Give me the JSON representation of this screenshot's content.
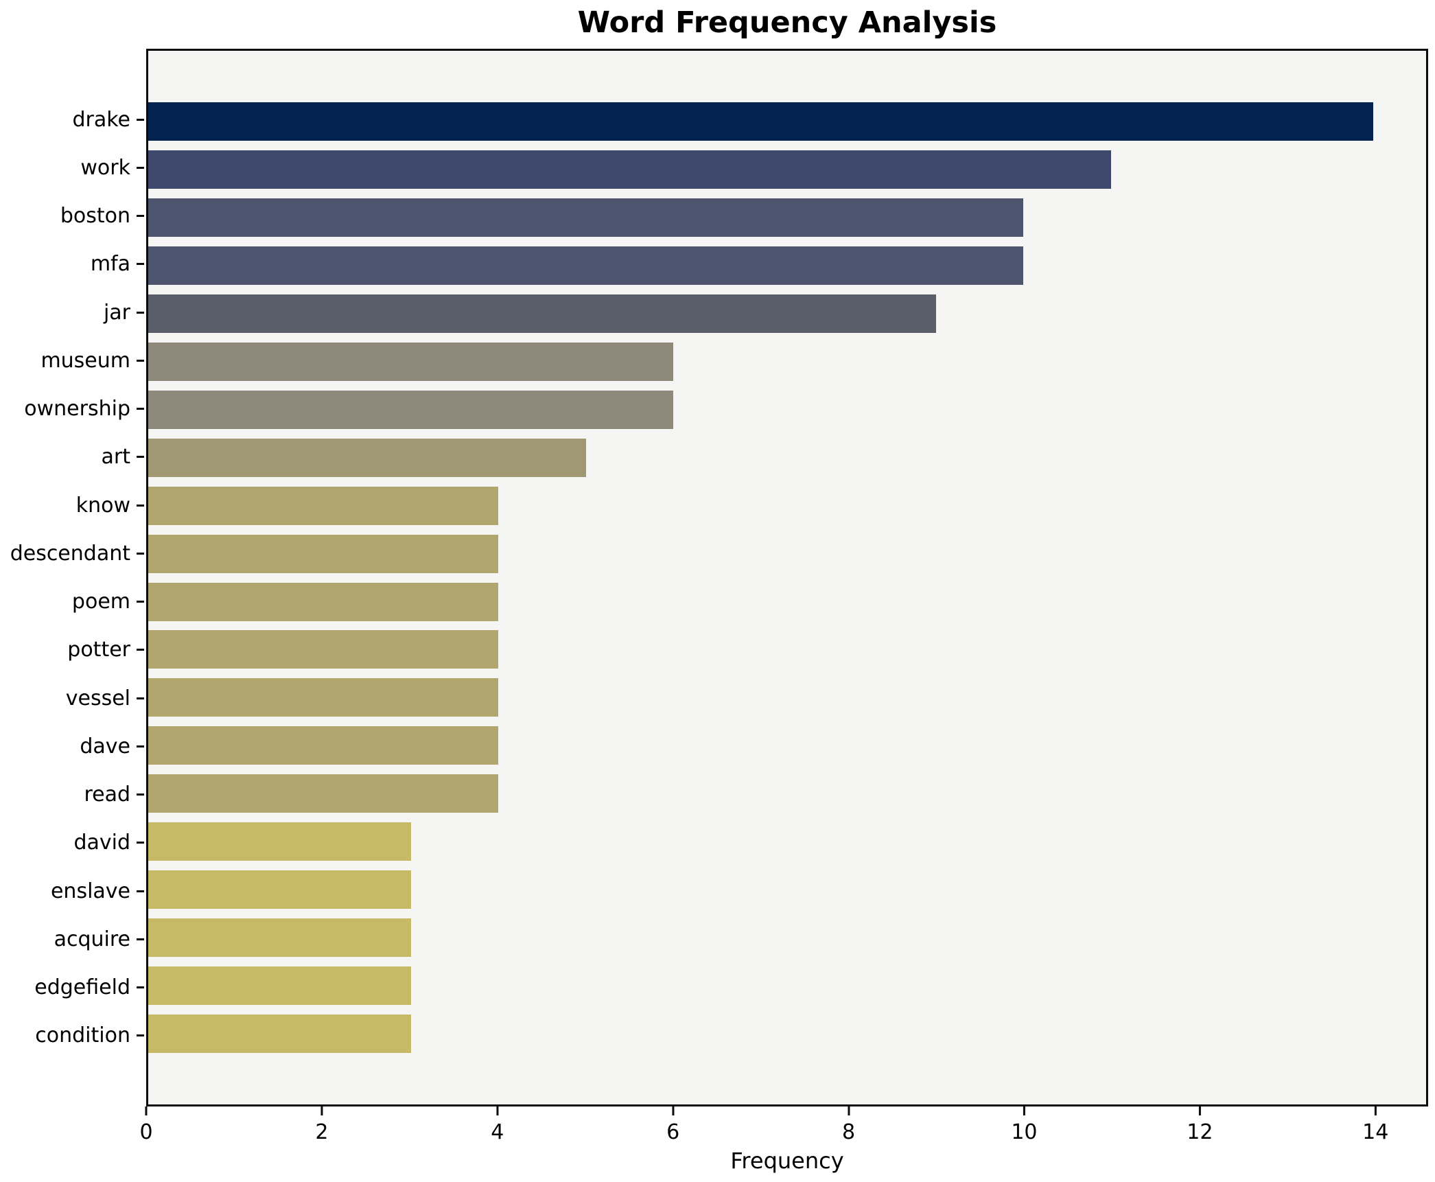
{
  "title": "Word Frequency Analysis",
  "xaxis": {
    "label": "Frequency"
  },
  "chart_data": {
    "type": "bar",
    "orientation": "horizontal",
    "title": "Word Frequency Analysis",
    "xlabel": "Frequency",
    "ylabel": "",
    "categories": [
      "drake",
      "work",
      "boston",
      "mfa",
      "jar",
      "museum",
      "ownership",
      "art",
      "know",
      "descendant",
      "poem",
      "potter",
      "vessel",
      "dave",
      "read",
      "david",
      "enslave",
      "acquire",
      "edgefield",
      "condition"
    ],
    "values": [
      14,
      11,
      10,
      10,
      9,
      6,
      6,
      5,
      4,
      4,
      4,
      4,
      4,
      4,
      4,
      3,
      3,
      3,
      3,
      3
    ],
    "bar_colors": [
      "#02234f",
      "#3e496d",
      "#4e556e",
      "#4e556e",
      "#5a5e68",
      "#8e897b",
      "#8e897b",
      "#a09873",
      "#b1a76e",
      "#b1a76e",
      "#b1a76e",
      "#b1a76e",
      "#b1a76e",
      "#b1a76e",
      "#b1a76e",
      "#c6ba67",
      "#c6ba67",
      "#c6ba67",
      "#c6ba67",
      "#c6ba67"
    ],
    "xlim": [
      0,
      14.6
    ],
    "xticks": [
      0,
      2,
      4,
      6,
      8,
      10,
      12,
      14
    ],
    "grid": false,
    "legend": false,
    "plot_background": "#f5f5f3",
    "figure_background": "#ffffff",
    "spine_color": "#0c0c0c"
  }
}
